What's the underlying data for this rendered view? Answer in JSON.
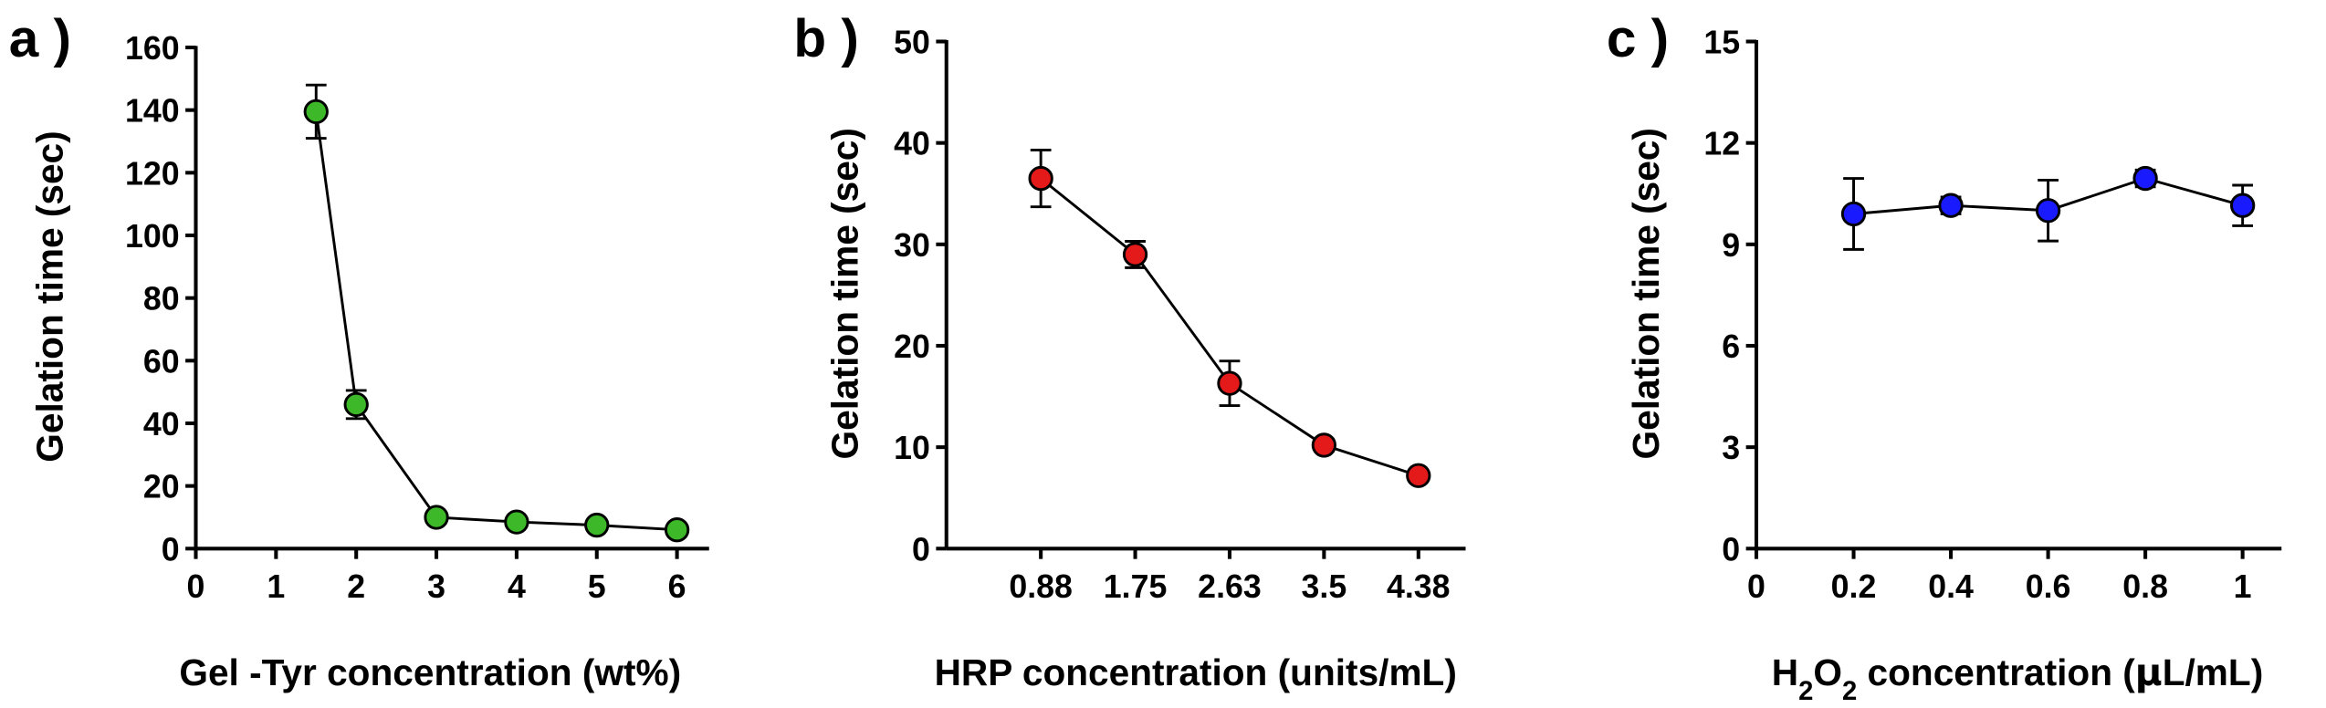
{
  "chart_data": [
    {
      "panel": "a )",
      "type": "line",
      "xlabel": "Gel -Tyr concentration (wt%)",
      "ylabel": "Gelation time (sec)",
      "x_ticks": [
        "0",
        "1",
        "2",
        "3",
        "4",
        "5",
        "6"
      ],
      "y_ticks": [
        "0",
        "20",
        "40",
        "60",
        "80",
        "100",
        "120",
        "140",
        "160"
      ],
      "xlim": [
        0,
        6.4
      ],
      "ylim": [
        0,
        160
      ],
      "marker_color": "#3cb828",
      "points": [
        {
          "x": 1.5,
          "y": 139.5,
          "err": 8.5
        },
        {
          "x": 2,
          "y": 46,
          "err": 4.5
        },
        {
          "x": 3,
          "y": 10,
          "err": 1.5
        },
        {
          "x": 4,
          "y": 8.5,
          "err": 1.0
        },
        {
          "x": 5,
          "y": 7.5,
          "err": 1.0
        },
        {
          "x": 6,
          "y": 6,
          "err": 1.0
        }
      ]
    },
    {
      "panel": "b )",
      "type": "line",
      "xlabel": "HRP concentration (units/mL)",
      "ylabel": "Gelation time (sec)",
      "categories": [
        "0.88",
        "1.75",
        "2.63",
        "3.5",
        "4.38"
      ],
      "y_ticks": [
        "0",
        "10",
        "20",
        "30",
        "40",
        "50"
      ],
      "ylim": [
        0,
        50
      ],
      "marker_color": "#e41a1a",
      "values": [
        36.5,
        29,
        16.3,
        10.2,
        7.2
      ],
      "errors": [
        2.8,
        1.3,
        2.2,
        0.6,
        0.5
      ]
    },
    {
      "panel": "c )",
      "type": "line",
      "xlabel_parts": [
        "H",
        "2",
        "O",
        "2",
        " concentration (",
        "μ",
        "L/mL)"
      ],
      "ylabel": "Gelation time (sec)",
      "x_ticks": [
        "0",
        "0.2",
        "0.4",
        "0.6",
        "0.8",
        "1"
      ],
      "y_ticks": [
        "0",
        "3",
        "6",
        "9",
        "12",
        "15"
      ],
      "xlim": [
        0,
        1.08
      ],
      "ylim": [
        0,
        15
      ],
      "marker_color": "#1a1aff",
      "points": [
        {
          "x": 0.2,
          "y": 9.9,
          "err": 1.05
        },
        {
          "x": 0.4,
          "y": 10.15,
          "err": 0.25
        },
        {
          "x": 0.6,
          "y": 10.0,
          "err": 0.9
        },
        {
          "x": 0.8,
          "y": 10.95,
          "err": 0.25
        },
        {
          "x": 1.0,
          "y": 10.15,
          "err": 0.6
        }
      ]
    }
  ]
}
